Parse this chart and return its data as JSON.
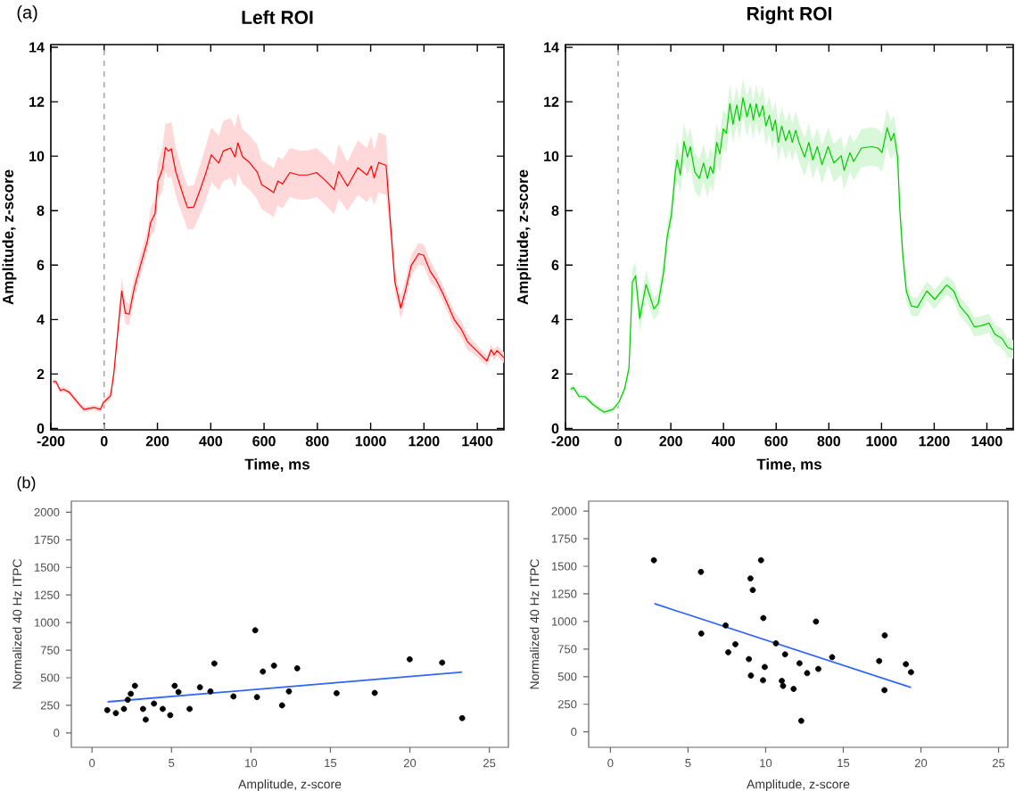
{
  "chart_data": [
    {
      "type": "line",
      "title": "Left ROI",
      "xlabel": "Time, ms",
      "ylabel": "Amplitude, z-score",
      "annotations": [
        "(a)"
      ],
      "xlim": [
        -200,
        1500
      ],
      "ylim": [
        -0.05,
        14.1
      ],
      "xticks": [
        -200,
        0,
        200,
        400,
        600,
        800,
        1000,
        1200,
        1400
      ],
      "yticks": [
        0,
        2,
        4,
        6,
        8,
        10,
        12,
        14
      ],
      "ref_lines": [
        {
          "axis": "x",
          "value": 0,
          "color": "#aaaaaa",
          "line_style": "dashed"
        }
      ],
      "series": [
        {
          "color": "#ff0000",
          "x": [
            -192,
            -181,
            -164,
            -153,
            -131,
            -92,
            -76,
            -37,
            -14,
            -3,
            24,
            36,
            52,
            66,
            80,
            94,
            113,
            136,
            163,
            174,
            191,
            202,
            219,
            230,
            241,
            252,
            269,
            297,
            313,
            336,
            358,
            380,
            402,
            430,
            447,
            474,
            491,
            502,
            519,
            547,
            574,
            591,
            613,
            636,
            652,
            669,
            697,
            730,
            763,
            797,
            830,
            863,
            880,
            913,
            952,
            986,
            1002,
            1013,
            1030,
            1058,
            1074,
            1091,
            1113,
            1130,
            1152,
            1180,
            1199,
            1224,
            1247,
            1274,
            1313,
            1341,
            1363,
            1397,
            1436,
            1452,
            1463,
            1474,
            1500
          ],
          "values": [
            1.72,
            1.72,
            1.39,
            1.44,
            1.33,
            0.87,
            0.7,
            0.77,
            0.7,
            0.95,
            1.2,
            1.99,
            3.63,
            5.05,
            4.23,
            4.2,
            5.16,
            5.98,
            6.91,
            7.56,
            7.89,
            9.09,
            9.53,
            10.32,
            10.19,
            10.27,
            9.42,
            8.55,
            8.11,
            8.13,
            8.71,
            9.33,
            10.05,
            9.75,
            10.19,
            10.3,
            9.97,
            10.49,
            9.99,
            9.75,
            9.42,
            8.96,
            8.82,
            8.66,
            9.09,
            8.98,
            9.4,
            9.31,
            9.31,
            9.4,
            9.11,
            8.77,
            9.44,
            8.9,
            9.58,
            9.31,
            9.64,
            9.2,
            9.77,
            9.66,
            7.56,
            5.38,
            4.42,
            5.05,
            5.98,
            6.42,
            6.36,
            5.76,
            5.43,
            4.89,
            4.01,
            3.63,
            3.19,
            2.86,
            2.48,
            2.89,
            2.7,
            2.86,
            2.6
          ],
          "lower": [
            1.62,
            1.62,
            1.29,
            1.34,
            1.23,
            0.77,
            0.6,
            0.67,
            0.6,
            0.85,
            1.05,
            1.79,
            3.33,
            4.55,
            3.83,
            3.8,
            4.76,
            5.58,
            6.51,
            7.06,
            7.29,
            8.39,
            8.73,
            9.42,
            9.19,
            9.27,
            8.52,
            7.75,
            7.31,
            7.33,
            7.81,
            8.33,
            9.05,
            8.75,
            9.09,
            9.2,
            8.87,
            9.39,
            8.99,
            8.75,
            8.42,
            8.06,
            7.92,
            7.76,
            8.19,
            8.08,
            8.5,
            8.41,
            8.41,
            8.5,
            8.21,
            7.87,
            8.44,
            8.0,
            8.58,
            8.31,
            8.54,
            8.2,
            8.67,
            8.56,
            6.96,
            4.98,
            4.02,
            4.65,
            5.58,
            6.02,
            5.96,
            5.36,
            5.13,
            4.59,
            3.71,
            3.33,
            2.89,
            2.66,
            2.28,
            2.69,
            2.5,
            2.66,
            2.4
          ],
          "upper": [
            1.82,
            1.82,
            1.49,
            1.54,
            1.43,
            0.97,
            0.8,
            0.87,
            0.8,
            1.05,
            1.35,
            2.19,
            3.93,
            5.55,
            4.63,
            4.6,
            5.56,
            6.38,
            7.31,
            8.06,
            8.49,
            9.79,
            10.33,
            11.22,
            11.19,
            11.27,
            10.32,
            9.35,
            8.91,
            8.93,
            9.61,
            10.33,
            11.05,
            10.75,
            11.29,
            11.4,
            11.07,
            11.59,
            10.99,
            10.75,
            10.42,
            9.86,
            9.72,
            9.56,
            9.99,
            9.88,
            10.3,
            10.21,
            10.21,
            10.3,
            10.01,
            9.67,
            10.44,
            9.8,
            10.58,
            10.31,
            10.74,
            10.2,
            10.87,
            10.76,
            8.16,
            5.78,
            4.82,
            5.45,
            6.38,
            6.82,
            6.76,
            6.16,
            5.73,
            5.19,
            4.31,
            3.93,
            3.49,
            3.06,
            2.68,
            3.09,
            2.9,
            3.06,
            2.8
          ]
        }
      ]
    },
    {
      "type": "line",
      "title": "Right ROI",
      "xlabel": "Time, ms",
      "ylabel": "Amplitude, z-score",
      "xlim": [
        -200,
        1500
      ],
      "ylim": [
        -0.05,
        14.1
      ],
      "xticks": [
        -200,
        0,
        200,
        400,
        600,
        800,
        1000,
        1200,
        1400
      ],
      "yticks": [
        0,
        2,
        4,
        6,
        8,
        10,
        12,
        14
      ],
      "ref_lines": [
        {
          "axis": "x",
          "value": 0,
          "color": "#aaaaaa",
          "line_style": "dashed"
        }
      ],
      "series": [
        {
          "color": "#00cc00",
          "x": [
            -181,
            -170,
            -148,
            -126,
            -98,
            -70,
            -53,
            -20,
            2,
            24,
            41,
            54,
            66,
            82,
            106,
            136,
            152,
            172,
            186,
            202,
            217,
            224,
            236,
            250,
            263,
            274,
            291,
            308,
            324,
            339,
            350,
            361,
            374,
            386,
            399,
            411,
            424,
            436,
            450,
            461,
            474,
            489,
            502,
            513,
            524,
            536,
            549,
            561,
            574,
            586,
            597,
            608,
            621,
            636,
            650,
            661,
            674,
            688,
            708,
            724,
            739,
            756,
            774,
            797,
            819,
            847,
            858,
            880,
            894,
            924,
            963,
            986,
            1002,
            1021,
            1036,
            1047,
            1061,
            1069,
            1080,
            1094,
            1113,
            1136,
            1172,
            1202,
            1247,
            1274,
            1297,
            1330,
            1352,
            1374,
            1408,
            1430,
            1458,
            1479,
            1500
          ],
          "values": [
            1.44,
            1.5,
            1.17,
            1.17,
            0.9,
            0.7,
            0.6,
            0.7,
            0.95,
            1.44,
            2.21,
            5.38,
            5.6,
            4.04,
            5.29,
            4.39,
            4.59,
            5.7,
            7.02,
            7.84,
            9.42,
            9.86,
            9.31,
            10.54,
            9.97,
            10.35,
            9.42,
            9.18,
            9.75,
            9.18,
            9.62,
            9.37,
            10.51,
            10.08,
            11.01,
            10.84,
            11.93,
            11.17,
            11.88,
            11.3,
            12.15,
            11.44,
            11.93,
            11.33,
            11.93,
            11.44,
            11.85,
            11.11,
            11.5,
            10.93,
            11.33,
            10.51,
            11.11,
            10.57,
            10.95,
            10.51,
            10.95,
            10.46,
            9.97,
            10.51,
            9.86,
            10.35,
            9.69,
            10.35,
            9.75,
            10.02,
            9.48,
            10.13,
            9.8,
            10.3,
            10.35,
            10.3,
            10.13,
            11.04,
            10.57,
            10.84,
            9.97,
            8.11,
            6.47,
            5.05,
            4.5,
            4.45,
            5.05,
            4.74,
            5.27,
            5.05,
            4.5,
            4.12,
            3.74,
            3.76,
            3.87,
            3.46,
            3.3,
            2.97,
            2.9
          ],
          "lower": [
            1.34,
            1.4,
            1.07,
            1.07,
            0.8,
            0.6,
            0.5,
            0.6,
            0.85,
            1.34,
            2.01,
            4.88,
            5.1,
            3.54,
            4.79,
            3.99,
            4.19,
            5.2,
            6.52,
            7.34,
            8.72,
            9.16,
            8.61,
            9.84,
            9.27,
            9.65,
            8.72,
            8.48,
            9.05,
            8.48,
            8.92,
            8.67,
            9.81,
            9.38,
            10.31,
            10.14,
            11.23,
            10.47,
            11.18,
            10.6,
            11.45,
            10.74,
            11.23,
            10.63,
            11.23,
            10.74,
            11.15,
            10.41,
            10.8,
            10.23,
            10.63,
            9.81,
            10.41,
            9.87,
            10.25,
            9.81,
            10.25,
            9.76,
            9.27,
            9.81,
            9.16,
            9.65,
            8.99,
            9.65,
            9.05,
            9.32,
            8.78,
            9.43,
            9.1,
            9.6,
            9.65,
            9.6,
            9.43,
            10.34,
            9.87,
            10.14,
            9.27,
            7.61,
            5.97,
            4.65,
            4.15,
            4.1,
            4.7,
            4.39,
            4.92,
            4.7,
            4.15,
            3.77,
            3.39,
            3.41,
            3.52,
            3.11,
            2.95,
            2.62,
            2.55
          ],
          "upper": [
            1.54,
            1.6,
            1.27,
            1.27,
            1.0,
            0.8,
            0.7,
            0.8,
            1.05,
            1.54,
            2.41,
            5.88,
            6.1,
            4.54,
            5.79,
            4.79,
            4.99,
            6.2,
            7.52,
            8.34,
            10.12,
            10.56,
            10.01,
            11.24,
            10.67,
            11.05,
            10.12,
            9.88,
            10.45,
            9.88,
            10.32,
            10.07,
            11.21,
            10.78,
            11.71,
            11.54,
            12.63,
            11.87,
            12.58,
            12.0,
            12.85,
            12.14,
            12.63,
            12.03,
            12.63,
            12.14,
            12.55,
            11.81,
            12.2,
            11.63,
            12.03,
            11.21,
            11.81,
            11.27,
            11.65,
            11.21,
            11.65,
            11.16,
            10.67,
            11.21,
            10.56,
            11.05,
            10.39,
            11.05,
            10.45,
            10.72,
            10.18,
            10.83,
            10.5,
            11.0,
            11.05,
            11.0,
            10.83,
            11.74,
            11.27,
            11.54,
            10.67,
            8.61,
            6.97,
            5.45,
            4.85,
            4.8,
            5.4,
            5.09,
            5.62,
            5.4,
            4.85,
            4.47,
            4.09,
            4.11,
            4.22,
            3.81,
            3.65,
            3.32,
            3.25
          ]
        }
      ]
    },
    {
      "type": "scatter",
      "xlabel": "Amplitude, z-score",
      "ylabel": "Normalized 40 Hz ITPC",
      "annotations": [
        "(b)"
      ],
      "xlim": [
        -1.3,
        26.2
      ],
      "ylim": [
        -130,
        2100
      ],
      "xticks": [
        0,
        5,
        10,
        15,
        20,
        25
      ],
      "yticks": [
        0,
        250,
        500,
        750,
        1000,
        1250,
        1500,
        1750,
        2000
      ],
      "series": [
        {
          "type": "scatter",
          "marker": "circle",
          "color": "#000000",
          "x": [
            0.96,
            1.5,
            2.01,
            2.25,
            2.44,
            2.7,
            3.21,
            3.38,
            3.9,
            4.45,
            4.92,
            5.2,
            5.44,
            6.14,
            6.79,
            7.45,
            7.7,
            8.9,
            10.27,
            10.38,
            10.75,
            11.45,
            11.96,
            12.39,
            12.91,
            15.39,
            17.79,
            19.99,
            22.03,
            23.29
          ],
          "values": [
            207,
            180,
            218,
            301,
            355,
            427,
            218,
            121,
            266,
            218,
            161,
            427,
            371,
            218,
            414,
            376,
            629,
            331,
            930,
            325,
            556,
            610,
            250,
            376,
            586,
            360,
            363,
            667,
            637,
            134
          ]
        },
        {
          "type": "line",
          "marker": "none",
          "color": "#3366ff",
          "x": [
            0.98,
            23.29
          ],
          "values": [
            282,
            551
          ]
        }
      ]
    },
    {
      "type": "scatter",
      "xlabel": "Amplitude, z-score",
      "ylabel": "Normalized 40 Hz ITPC",
      "xlim": [
        -1.4,
        25.6
      ],
      "ylim": [
        -140,
        2090
      ],
      "xticks": [
        0,
        5,
        10,
        15,
        20,
        25
      ],
      "yticks": [
        0,
        250,
        500,
        750,
        1000,
        1250,
        1500,
        1750,
        2000
      ],
      "series": [
        {
          "type": "scatter",
          "marker": "circle",
          "color": "#000000",
          "x": [
            2.8,
            5.83,
            5.85,
            7.42,
            7.59,
            8.05,
            8.92,
            9.02,
            9.05,
            9.17,
            9.7,
            9.83,
            9.85,
            9.94,
            10.66,
            11.04,
            11.12,
            11.25,
            11.8,
            12.18,
            12.29,
            12.67,
            13.24,
            13.39,
            14.28,
            17.31,
            17.67,
            17.65,
            19.03,
            19.36
          ],
          "values": [
            1555,
            1449,
            891,
            964,
            721,
            794,
            659,
            1390,
            510,
            1285,
            1555,
            467,
            1031,
            588,
            802,
            462,
            416,
            702,
            389,
            621,
            100,
            532,
            999,
            570,
            677,
            642,
            874,
            378,
            613,
            540
          ]
        },
        {
          "type": "line",
          "marker": "none",
          "color": "#3366ff",
          "x": [
            2.84,
            19.36
          ],
          "values": [
            1161,
            402
          ]
        }
      ]
    }
  ]
}
